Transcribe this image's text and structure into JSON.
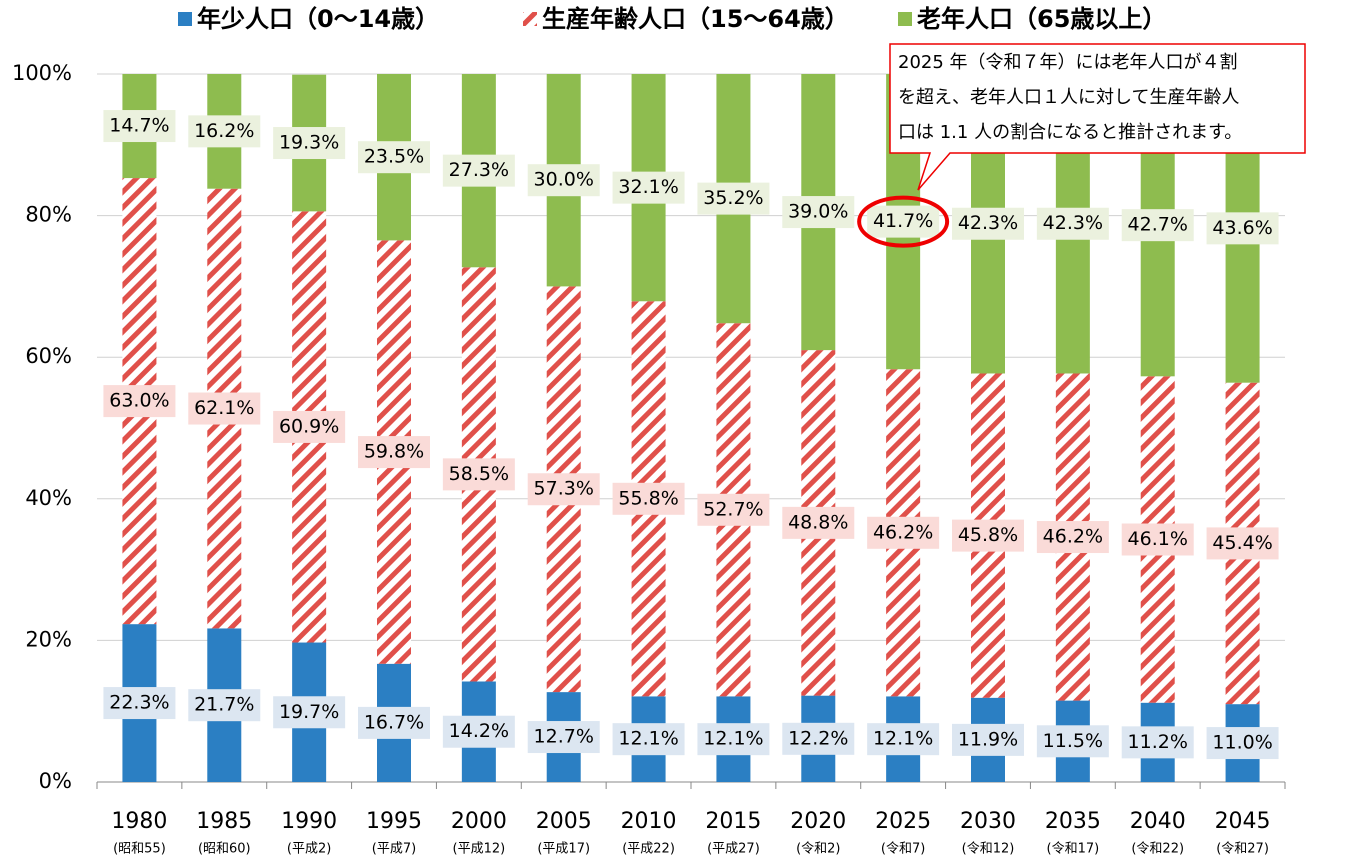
{
  "chart_data": {
    "type": "stacked-bar",
    "categories": [
      "1980",
      "1985",
      "1990",
      "1995",
      "2000",
      "2005",
      "2010",
      "2015",
      "2020",
      "2025",
      "2030",
      "2035",
      "2040",
      "2045"
    ],
    "category_notes": [
      "(昭和55)",
      "(昭和60)",
      "(平成2)",
      "(平成7)",
      "(平成12)",
      "(平成17)",
      "(平成22)",
      "(平成27)",
      "(令和2)",
      "(令和7)",
      "(令和12)",
      "(令和17)",
      "(令和22)",
      "(令和27)"
    ],
    "series": [
      {
        "name": "年少人口（0〜14歳）",
        "color": "#2b7fc3",
        "values": [
          22.3,
          21.7,
          19.7,
          16.7,
          14.2,
          12.7,
          12.1,
          12.1,
          12.2,
          12.1,
          11.9,
          11.5,
          11.2,
          11.0
        ],
        "value_labels": [
          "22.3%",
          "21.7%",
          "19.7%",
          "16.7%",
          "14.2%",
          "12.7%",
          "12.1%",
          "12.1%",
          "12.2%",
          "12.1%",
          "11.9%",
          "11.5%",
          "11.2%",
          "11.0%"
        ]
      },
      {
        "name": "生産年齢人口（15〜64歳）",
        "color": "#e0504a",
        "values": [
          63.0,
          62.1,
          60.9,
          59.8,
          58.5,
          57.3,
          55.8,
          52.7,
          48.8,
          46.2,
          45.8,
          46.2,
          46.1,
          45.4
        ],
        "value_labels": [
          "63.0%",
          "62.1%",
          "60.9%",
          "59.8%",
          "58.5%",
          "57.3%",
          "55.8%",
          "52.7%",
          "48.8%",
          "46.2%",
          "45.8%",
          "46.2%",
          "46.1%",
          "45.4%"
        ]
      },
      {
        "name": "老年人口（65歳以上）",
        "color": "#8ebc4f",
        "values": [
          14.7,
          16.2,
          19.3,
          23.5,
          27.3,
          30.0,
          32.1,
          35.2,
          39.0,
          41.7,
          42.3,
          42.3,
          42.7,
          43.6
        ],
        "value_labels": [
          "14.7%",
          "16.2%",
          "19.3%",
          "23.5%",
          "27.3%",
          "30.0%",
          "32.1%",
          "35.2%",
          "39.0%",
          "41.7%",
          "42.3%",
          "42.3%",
          "42.7%",
          "43.6%"
        ]
      }
    ],
    "ylim": [
      0,
      100
    ],
    "yticks": [
      {
        "value": 0,
        "label": "0%"
      },
      {
        "value": 20,
        "label": "20%"
      },
      {
        "value": 40,
        "label": "40%"
      },
      {
        "value": 60,
        "label": "60%"
      },
      {
        "value": 80,
        "label": "80%"
      },
      {
        "value": 100,
        "label": "100%"
      }
    ],
    "grid": true,
    "annotation": {
      "lines": [
        "2025 年（令和７年）には老年人口が４割",
        "を超え、老年人口１人に対して生産年齢人",
        "口は 1.1 人の割合になると推計されます。"
      ]
    }
  }
}
